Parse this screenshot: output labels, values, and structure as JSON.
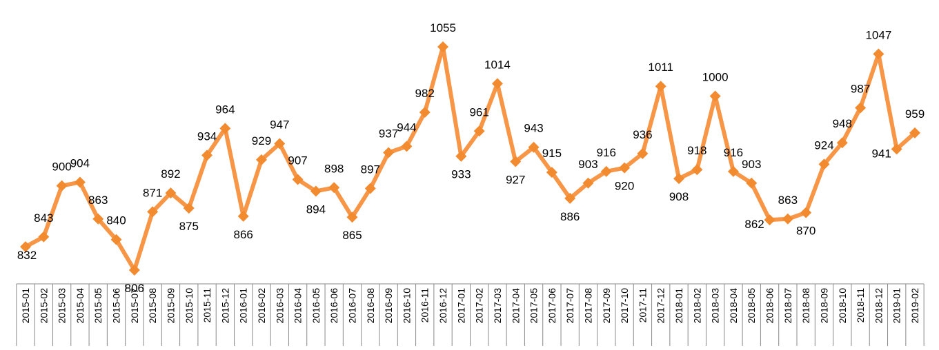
{
  "chart_data": {
    "type": "line",
    "title": "",
    "xlabel": "",
    "ylabel": "",
    "ylim": [
      790,
      1060
    ],
    "grid": false,
    "legend": "none",
    "line_color": "#F79646",
    "marker_color": "#F28A30",
    "categories": [
      "2015-01",
      "2015-02",
      "2015-03",
      "2015-04",
      "2015-05",
      "2015-06",
      "2015-07",
      "2015-08",
      "2015-09",
      "2015-10",
      "2015-11",
      "2015-12",
      "2016-01",
      "2016-02",
      "2016-03",
      "2016-04",
      "2016-05",
      "2016-06",
      "2016-07",
      "2016-08",
      "2016-09",
      "2016-10",
      "2016-11",
      "2016-12",
      "2017-01",
      "2017-02",
      "2017-03",
      "2017-04",
      "2017-05",
      "2017-06",
      "2017-07",
      "2017-08",
      "2017-09",
      "2017-10",
      "2017-11",
      "2017-12",
      "2018-01",
      "2018-02",
      "2018-03",
      "2018-04",
      "2018-05",
      "2018-06",
      "2018-07",
      "2018-08",
      "2018-09",
      "2018-10",
      "2018-11",
      "2018-12",
      "2019-01",
      "2019-02"
    ],
    "values": [
      832,
      843,
      900,
      904,
      863,
      840,
      806,
      871,
      892,
      875,
      934,
      964,
      866,
      929,
      947,
      907,
      894,
      898,
      865,
      897,
      937,
      944,
      982,
      1055,
      933,
      961,
      1014,
      927,
      943,
      915,
      886,
      903,
      916,
      920,
      936,
      1011,
      908,
      918,
      1000,
      916,
      903,
      862,
      863,
      870,
      924,
      948,
      987,
      1047,
      941,
      959
    ]
  }
}
